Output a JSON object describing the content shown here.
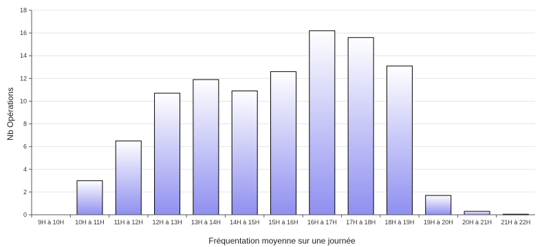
{
  "chart_data": {
    "type": "bar",
    "title": "",
    "xlabel": "Fréquentation moyenne sur une journée",
    "ylabel": "Nb Opérations",
    "categories": [
      "9H à 10H",
      "10H à 11H",
      "11H à 12H",
      "12H à 13H",
      "13H à 14H",
      "14H à 15H",
      "15H à 16H",
      "16H à 17H",
      "17H à 18H",
      "18H à 19H",
      "19H à 20H",
      "20H à 21H",
      "21H à 22H"
    ],
    "values": [
      0,
      3.0,
      6.5,
      10.7,
      11.9,
      10.9,
      12.6,
      16.2,
      15.6,
      13.1,
      1.7,
      0.3,
      0.05
    ],
    "ylim": [
      0,
      18
    ],
    "yticks": [
      0,
      2,
      4,
      6,
      8,
      10,
      12,
      14,
      16,
      18
    ],
    "grid": true,
    "legend": "none",
    "colors": {
      "bar_top": "#ffffff",
      "bar_bottom": "#8f8ff0",
      "bar_edge": "#000000",
      "grid": "#e4e4e4",
      "axis": "#555555"
    }
  }
}
